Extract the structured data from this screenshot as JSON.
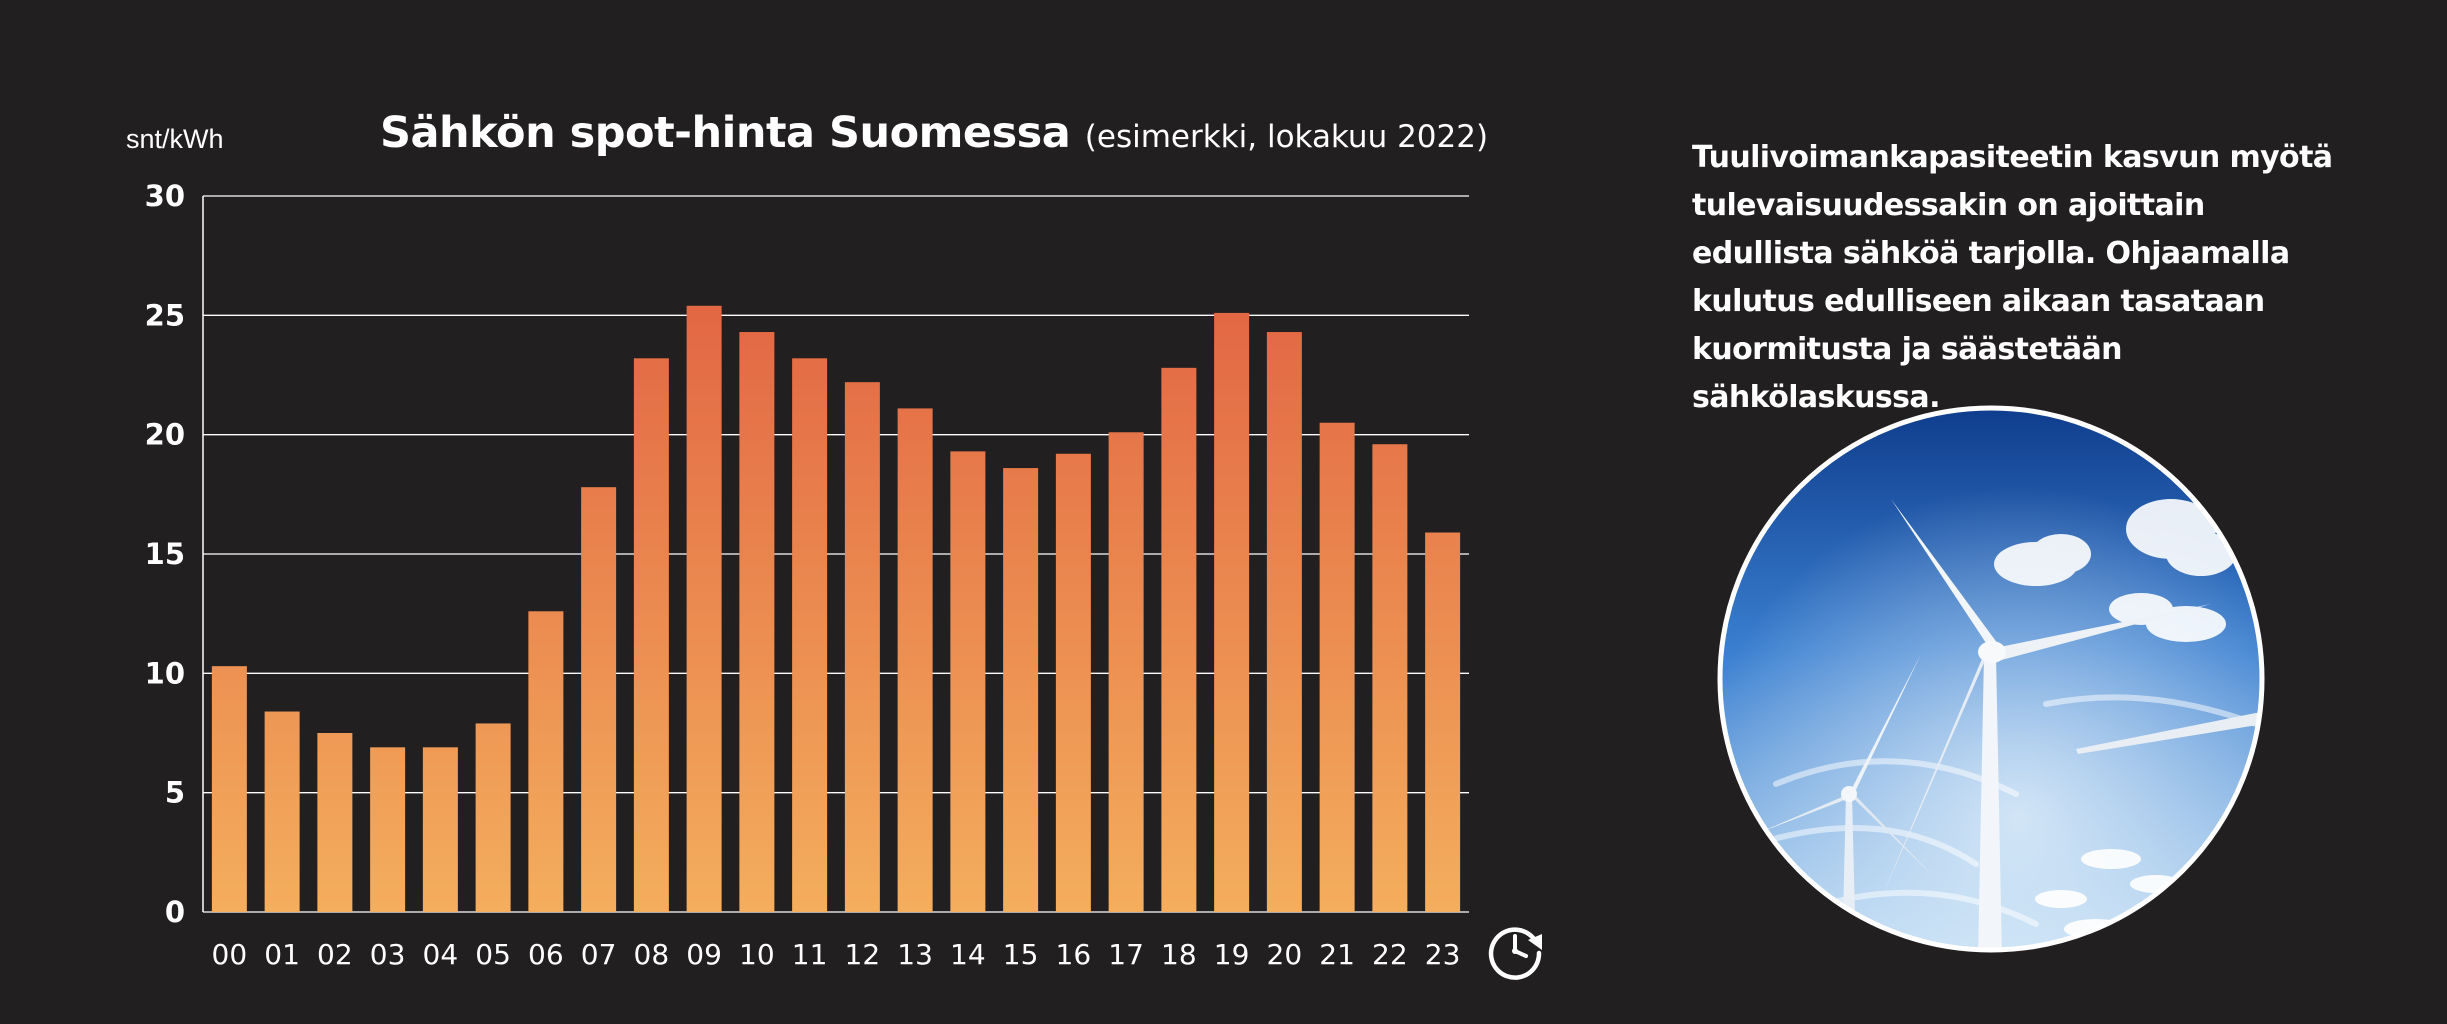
{
  "header": {
    "unit_label": "snt/kWh",
    "title_main": "Sähkön spot-hinta Suomessa",
    "title_sub": "(esimerkki, lokakuu 2022)"
  },
  "side": {
    "text": "Tuulivoimankapasiteetin kasvun myötä tulevaisuudessakin on ajoittain edullista sähköä tarjolla. Ohjaamalla kulutus edulliseen aikaan tasataan kuormitusta ja säästetään sähkölaskussa."
  },
  "icons": {
    "clock": "clock-refresh-icon",
    "photo": "wind-turbine-photo"
  },
  "colors": {
    "background": "#221f20",
    "bar_top": "#df5a3f",
    "bar_bottom": "#f4ae5d",
    "grid": "#ffffff",
    "text": "#ffffff"
  },
  "chart_data": {
    "type": "bar",
    "title": "Sähkön spot-hinta Suomessa (esimerkki, lokakuu 2022)",
    "ylabel": "snt/kWh",
    "xlabel": "",
    "ylim": [
      0,
      30
    ],
    "yticks": [
      0,
      5,
      10,
      15,
      20,
      25,
      30
    ],
    "grid": true,
    "categories": [
      "00",
      "01",
      "02",
      "03",
      "04",
      "05",
      "06",
      "07",
      "08",
      "09",
      "10",
      "11",
      "12",
      "13",
      "14",
      "15",
      "16",
      "17",
      "18",
      "19",
      "20",
      "21",
      "22",
      "23"
    ],
    "values": [
      10.3,
      8.4,
      7.5,
      6.9,
      6.9,
      7.9,
      12.6,
      17.8,
      23.2,
      25.4,
      24.3,
      23.2,
      22.2,
      21.1,
      19.3,
      18.6,
      19.2,
      20.1,
      22.8,
      25.1,
      24.3,
      20.5,
      19.6,
      15.9
    ]
  }
}
